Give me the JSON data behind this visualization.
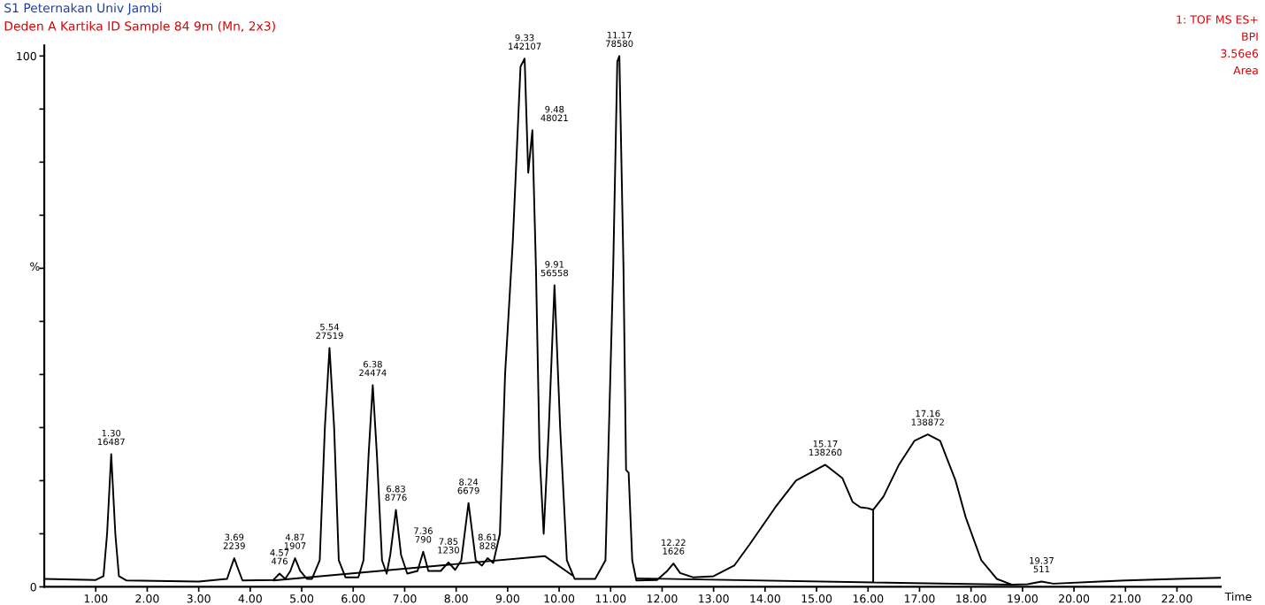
{
  "chart_data": {
    "type": "line",
    "title": "S1 Peternakan Univ Jambi",
    "subtitle": "Deden A Kartika ID Sample 84 9m (Mn, 2x3)",
    "xlabel": "Time",
    "ylabel": "%",
    "xlim": [
      0,
      22.85
    ],
    "ylim": [
      0,
      102
    ],
    "xticks": [
      {
        "value": 1,
        "label": "1.00"
      },
      {
        "value": 2,
        "label": "2.00"
      },
      {
        "value": 3,
        "label": "3.00"
      },
      {
        "value": 4,
        "label": "4.00"
      },
      {
        "value": 5,
        "label": "5.00"
      },
      {
        "value": 6,
        "label": "6.00"
      },
      {
        "value": 7,
        "label": "7.00"
      },
      {
        "value": 8,
        "label": "8.00"
      },
      {
        "value": 9,
        "label": "9.00"
      },
      {
        "value": 10,
        "label": "10.00"
      },
      {
        "value": 11,
        "label": "11.00"
      },
      {
        "value": 12,
        "label": "12.00"
      },
      {
        "value": 13,
        "label": "13.00"
      },
      {
        "value": 14,
        "label": "14.00"
      },
      {
        "value": 15,
        "label": "15.00"
      },
      {
        "value": 16,
        "label": "16.00"
      },
      {
        "value": 17,
        "label": "17.00"
      },
      {
        "value": 18,
        "label": "18.00"
      },
      {
        "value": 19,
        "label": "19.00"
      },
      {
        "value": 20,
        "label": "20.00"
      },
      {
        "value": 21,
        "label": "21.00"
      },
      {
        "value": 22,
        "label": "22.00"
      }
    ],
    "yticks": [
      0,
      {
        "value": 10,
        "label": null
      },
      {
        "value": 20,
        "label": null
      },
      {
        "value": 30,
        "label": null
      },
      {
        "value": 40,
        "label": null
      },
      {
        "value": 50,
        "label": null
      },
      {
        "value": 60,
        "label": null
      },
      {
        "value": 70,
        "label": null
      },
      {
        "value": 80,
        "label": null
      },
      {
        "value": 90,
        "label": null
      },
      100
    ],
    "grid": false,
    "legend": false,
    "marker": "none",
    "line_style": "solid",
    "series": [
      {
        "color": "#000000",
        "x": [
          0.0,
          1.0,
          1.15,
          1.22,
          1.3,
          1.38,
          1.45,
          1.6,
          3.0,
          3.55,
          3.62,
          3.69,
          3.76,
          3.85,
          4.45,
          4.57,
          4.68,
          4.78,
          4.87,
          4.97,
          5.1,
          5.2,
          5.35,
          5.45,
          5.54,
          5.63,
          5.72,
          5.85,
          6.1,
          6.2,
          6.3,
          6.38,
          6.46,
          6.56,
          6.65,
          6.72,
          6.83,
          6.93,
          7.05,
          7.25,
          7.36,
          7.46,
          7.7,
          7.85,
          7.98,
          8.1,
          8.24,
          8.38,
          8.5,
          8.61,
          8.72,
          8.85,
          8.95,
          9.1,
          9.25,
          9.33,
          9.4,
          9.48,
          9.55,
          9.62,
          9.7,
          9.8,
          9.91,
          10.02,
          10.15,
          10.3,
          10.7,
          10.9,
          11.05,
          11.13,
          11.17,
          11.25,
          11.3,
          11.35,
          11.42,
          11.5,
          11.9,
          12.1,
          12.22,
          12.35,
          12.6,
          13.0,
          13.4,
          13.7,
          14.2,
          14.6,
          15.17,
          15.5,
          15.7,
          15.85,
          16.0,
          16.1,
          16.3,
          16.6,
          16.9,
          17.16,
          17.4,
          17.7,
          17.9,
          18.2,
          18.5,
          18.8,
          19.1,
          19.37,
          19.6,
          20.5,
          21.0,
          22.0,
          22.85
        ],
        "values": [
          1.5,
          1.3,
          2,
          10,
          25,
          10,
          2,
          1.2,
          1.0,
          1.5,
          3.5,
          5.4,
          3.5,
          1.2,
          1.3,
          2.5,
          1.5,
          3,
          5.4,
          3,
          1.5,
          1.5,
          5,
          30,
          45,
          30,
          5,
          1.8,
          1.8,
          5,
          25,
          38,
          25,
          5,
          2.5,
          6,
          14.5,
          6,
          2.5,
          3,
          6.6,
          3,
          3,
          4.6,
          3.2,
          5,
          15.8,
          5,
          4,
          5.4,
          4.5,
          10,
          40,
          65,
          98,
          99.5,
          78,
          86,
          60,
          25,
          10,
          30,
          56.8,
          30,
          5,
          1.5,
          1.5,
          5,
          60,
          99,
          100,
          60,
          22,
          21.5,
          5,
          1.2,
          1.3,
          3,
          4.4,
          2.6,
          1.8,
          2,
          4,
          8,
          15,
          20,
          23,
          20.5,
          16,
          15,
          14.8,
          14.5,
          17,
          23,
          27.5,
          28.7,
          27.5,
          20,
          13,
          5,
          1.5,
          0.4,
          0.5,
          1.0,
          0.6,
          1.0,
          1.2,
          1.5,
          1.7
        ]
      },
      {
        "color": "#000000",
        "x": [
          4.45,
          9.72,
          10.25,
          null,
          11.5,
          18.8,
          null,
          16.1,
          16.1
        ],
        "values": [
          1.2,
          5.8,
          2.2,
          null,
          1.6,
          0.4,
          null,
          14.5,
          0.9
        ]
      }
    ],
    "annotations": [
      {
        "text": "1.30\n16487",
        "x": 1.3,
        "y": 25
      },
      {
        "text": "3.69\n2239",
        "x": 3.69,
        "y": 5.4
      },
      {
        "text": "4.57\n476",
        "x": 4.57,
        "y": 2.5
      },
      {
        "text": "4.87\n1907",
        "x": 4.87,
        "y": 5.4
      },
      {
        "text": "5.54\n27519",
        "x": 5.54,
        "y": 45
      },
      {
        "text": "6.38\n24474",
        "x": 6.38,
        "y": 38
      },
      {
        "text": "6.83\n8776",
        "x": 6.83,
        "y": 14.5
      },
      {
        "text": "7.36\n790",
        "x": 7.36,
        "y": 6.6
      },
      {
        "text": "7.85\n1230",
        "x": 7.85,
        "y": 4.6
      },
      {
        "text": "8.24\n6679",
        "x": 8.24,
        "y": 15.8
      },
      {
        "text": "8.61\n828",
        "x": 8.61,
        "y": 5.4
      },
      {
        "text": "9.33\n142107",
        "x": 9.33,
        "y": 99.5
      },
      {
        "text": "9.48\n48021",
        "x": 9.48,
        "y": 86
      },
      {
        "text": "9.91\n56558",
        "x": 9.91,
        "y": 56.8
      },
      {
        "text": "11.17\n78580",
        "x": 11.17,
        "y": 100
      },
      {
        "text": "12.22\n1626",
        "x": 12.22,
        "y": 4.4
      },
      {
        "text": "15.17\n138260",
        "x": 15.17,
        "y": 23
      },
      {
        "text": "17.16\n138872",
        "x": 17.16,
        "y": 28.7
      },
      {
        "text": "19.37\n511",
        "x": 19.37,
        "y": 1.0
      },
      "1: TOF MS ES+",
      "BPI",
      "3.56e6",
      "Area"
    ]
  }
}
